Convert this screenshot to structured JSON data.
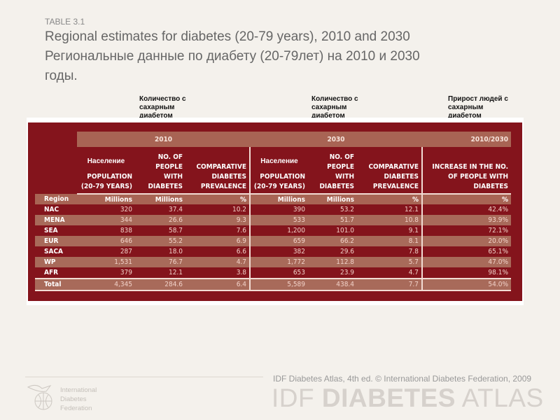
{
  "header": {
    "table_label": "TABLE 3.1",
    "title_en": "Regional estimates for diabetes (20-79 years), 2010 and 2030",
    "title_ru_line1": "Региональные данные по диабету (20-79лет) на 2010 и 2030",
    "title_ru_line2": "годы."
  },
  "annotations": [
    "Количество с сахарным диабетом",
    "Количество с сахарным диабетом",
    "Прирост людей с сахарным диабетом"
  ],
  "table": {
    "groups": [
      "2010",
      "2030",
      "2010/2030"
    ],
    "ru_population": "Население",
    "columns": [
      "POPULATION (20-79 YEARS)",
      "NO. OF PEOPLE WITH DIABETES",
      "COMPARATIVE DIABETES PREVALENCE",
      "POPULATION (20-79 YEARS)",
      "NO. OF PEOPLE WITH DIABETES",
      "COMPARATIVE DIABETES PREVALENCE",
      "INCREASE IN THE NO. OF PEOPLE WITH DIABETES"
    ],
    "units": [
      "Region",
      "Millions",
      "Millions",
      "%",
      "Millions",
      "Millions",
      "%",
      "%"
    ],
    "rows": [
      [
        "NAC",
        "320",
        "37.4",
        "10.2",
        "390",
        "53.2",
        "12.1",
        "42.4%"
      ],
      [
        "MENA",
        "344",
        "26.6",
        "9.3",
        "533",
        "51.7",
        "10.8",
        "93.9%"
      ],
      [
        "SEA",
        "838",
        "58.7",
        "7.6",
        "1,200",
        "101.0",
        "9.1",
        "72.1%"
      ],
      [
        "EUR",
        "646",
        "55.2",
        "6.9",
        "659",
        "66.2",
        "8.1",
        "20.0%"
      ],
      [
        "SACA",
        "287",
        "18.0",
        "6.6",
        "382",
        "29.6",
        "7.8",
        "65.1%"
      ],
      [
        "WP",
        "1,531",
        "76.7",
        "4.7",
        "1,772",
        "112.8",
        "5.7",
        "47.0%"
      ],
      [
        "AFR",
        "379",
        "12.1",
        "3.8",
        "653",
        "23.9",
        "4.7",
        "98.1%"
      ],
      [
        "Total",
        "4,345",
        "284.6",
        "6.4",
        "5,589",
        "438.4",
        "7.7",
        "54.0%"
      ]
    ]
  },
  "footer": {
    "credit": "IDF Diabetes Atlas, 4th ed. © International Diabetes Federation, 2009",
    "atlas_light1": "IDF ",
    "atlas_bold": "DIABETES",
    "atlas_light2": " ATLAS",
    "org_line1": "International",
    "org_line2": "Diabetes",
    "org_line3": "Federation"
  },
  "colors": {
    "table_bg": "#84141c",
    "band": "#a86454",
    "page_bg": "#f4f1ec"
  }
}
